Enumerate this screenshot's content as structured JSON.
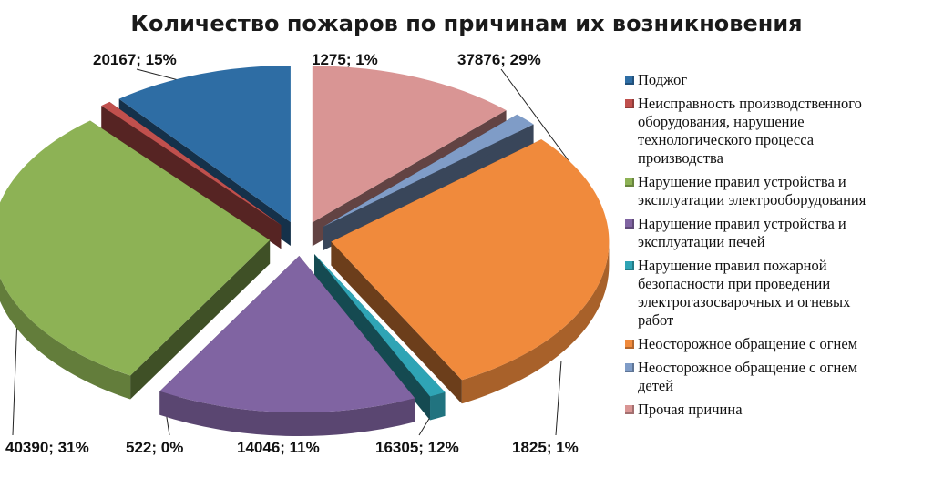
{
  "chart_data": {
    "type": "pie",
    "title": "Количество пожаров по причинам их возникновения",
    "legend_position": "right",
    "slices": [
      {
        "name": "Поджог",
        "value": 14046,
        "percent": "11%",
        "label": "14046; 11%",
        "color": "#2e6da4"
      },
      {
        "name": "Неисправность производственного оборудования, нарушение технологического процесса производства",
        "value": 522,
        "percent": "0%",
        "label": "522; 0%",
        "color": "#c0504d"
      },
      {
        "name": "Нарушение правил устройства и эксплуатации электрооборудования",
        "value": 40390,
        "percent": "31%",
        "label": "40390; 31%",
        "color": "#8db255"
      },
      {
        "name": "Нарушение правил устройства и эксплуатации печей",
        "value": 20167,
        "percent": "15%",
        "label": "20167; 15%",
        "color": "#8064a2"
      },
      {
        "name": "Нарушение правил пожарной безопасности при проведении электрогазосварочных и огневых работ",
        "value": 1275,
        "percent": "1%",
        "label": "1275; 1%",
        "color": "#2fa4b5"
      },
      {
        "name": "Неосторожное обращение с огнем",
        "value": 37876,
        "percent": "29%",
        "label": "37876; 29%",
        "color": "#f08a3c"
      },
      {
        "name": "Неосторожное обращение с огнем детей",
        "value": 1825,
        "percent": "1%",
        "label": "1825; 1%",
        "color": "#7f9cc7"
      },
      {
        "name": "Прочая причина",
        "value": 16305,
        "percent": "12%",
        "label": "16305; 12%",
        "color": "#d99594"
      }
    ]
  },
  "legend": {
    "items": [
      {
        "lines": [
          "Поджог"
        ],
        "color": "#2e6da4"
      },
      {
        "lines": [
          "Неисправность производственного",
          "оборудования, нарушение",
          "технологического процесса",
          "производства"
        ],
        "color": "#c0504d"
      },
      {
        "lines": [
          "Нарушение правил устройства и",
          "эксплуатации электрооборудования"
        ],
        "color": "#8db255"
      },
      {
        "lines": [
          "Нарушение правил устройства и",
          "эксплуатации печей"
        ],
        "color": "#8064a2"
      },
      {
        "lines": [
          "Нарушение правил пожарной",
          "безопасности при проведении",
          "электрогазосварочных и огневых",
          "работ"
        ],
        "color": "#2fa4b5"
      },
      {
        "lines": [
          "Неосторожное обращение с огнем"
        ],
        "color": "#f08a3c"
      },
      {
        "lines": [
          "Неосторожное обращение с огнем",
          "детей"
        ],
        "color": "#7f9cc7"
      },
      {
        "lines": [
          "Прочая причина"
        ],
        "color": "#d99594"
      }
    ]
  }
}
